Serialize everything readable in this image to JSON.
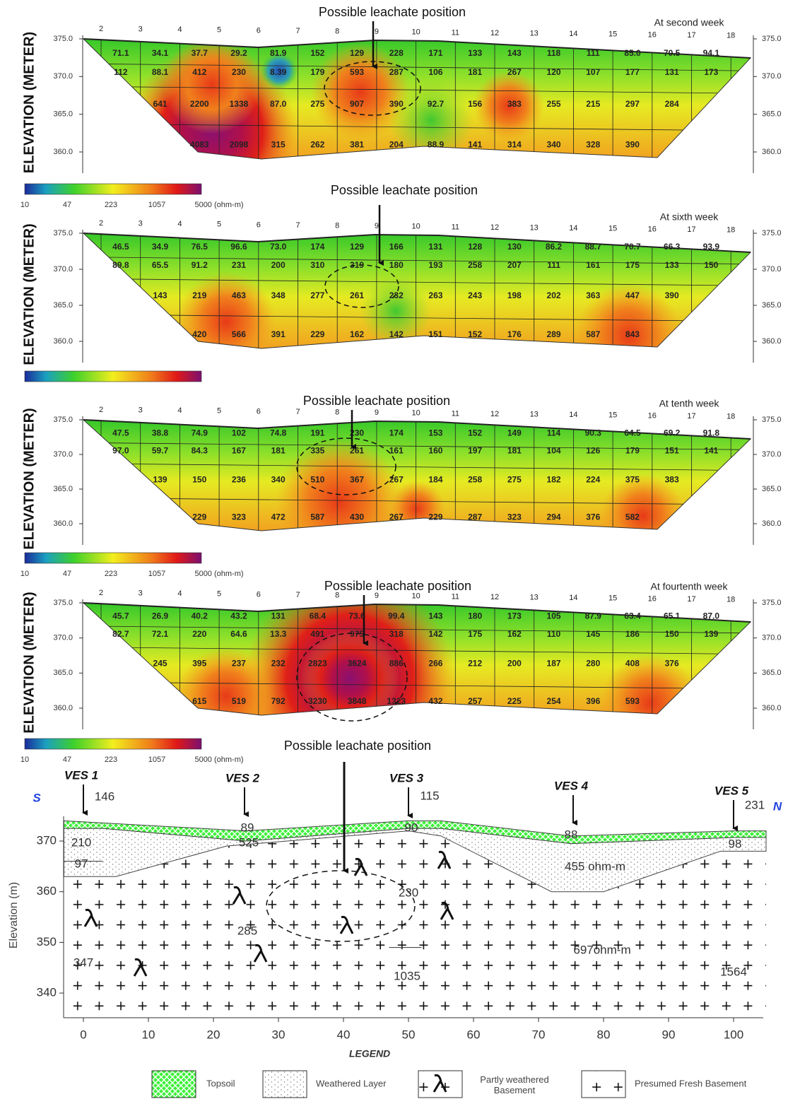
{
  "panels": [
    {
      "title": "Possible leachate position",
      "week": "At second week",
      "y_axis_label": "ELEVATION (METER)",
      "y_ticks": [
        "375.0",
        "370.0",
        "365.0",
        "360.0"
      ],
      "electrodes": [
        2,
        3,
        4,
        5,
        6,
        7,
        8,
        9,
        10,
        11,
        12,
        13,
        14,
        15,
        16,
        17,
        18
      ],
      "rows": [
        [
          "71.1",
          "34.1",
          "37.7",
          "29.2",
          "81.9",
          "152",
          "129",
          "228",
          "171",
          "133",
          "143",
          "118",
          "111",
          "85.0",
          "70.5",
          "94.1"
        ],
        [
          "112",
          "88.1",
          "412",
          "230",
          "8.39",
          "179",
          "593",
          "287",
          "106",
          "181",
          "267",
          "120",
          "107",
          "177",
          "131",
          "173"
        ],
        [
          "641",
          "2200",
          "1338",
          "87.0",
          "275",
          "907",
          "390",
          "92.7",
          "156",
          "383",
          "255",
          "215",
          "297",
          "284"
        ],
        [
          "4083",
          "2098",
          "315",
          "262",
          "381",
          "204",
          "88.9",
          "141",
          "314",
          "340",
          "328",
          "390"
        ]
      ],
      "colorbar": [
        "10",
        "47",
        "223",
        "1057",
        "5000 (ohm-m)"
      ]
    },
    {
      "title": "Possible leachate position",
      "week": "At sixth week",
      "y_axis_label": "ELEVATION (METER)",
      "y_ticks": [
        "375.0",
        "370.0",
        "365.0",
        "360.0"
      ],
      "electrodes": [
        2,
        3,
        4,
        5,
        6,
        7,
        8,
        9,
        10,
        11,
        12,
        13,
        14,
        15,
        16,
        17,
        18
      ],
      "rows": [
        [
          "46.5",
          "34.9",
          "76.5",
          "96.6",
          "73.0",
          "174",
          "129",
          "166",
          "131",
          "128",
          "130",
          "86.2",
          "88.7",
          "70.7",
          "66.3",
          "93.9"
        ],
        [
          "89.8",
          "65.5",
          "91.2",
          "231",
          "200",
          "310",
          "319",
          "180",
          "193",
          "258",
          "207",
          "111",
          "161",
          "175",
          "133",
          "150"
        ],
        [
          "143",
          "219",
          "463",
          "348",
          "277",
          "261",
          "232",
          "263",
          "243",
          "198",
          "202",
          "363",
          "447",
          "390"
        ],
        [
          "420",
          "566",
          "391",
          "229",
          "162",
          "142",
          "151",
          "152",
          "176",
          "289",
          "587",
          "843"
        ]
      ]
    },
    {
      "title": "Possible leachate position",
      "week": "At tenth  week",
      "y_axis_label": "ELEVATION (METER)",
      "y_ticks": [
        "375.0",
        "370.0",
        "365.0",
        "360.0"
      ],
      "electrodes": [
        2,
        3,
        4,
        5,
        6,
        7,
        8,
        9,
        10,
        11,
        12,
        13,
        14,
        15,
        16,
        17,
        18
      ],
      "rows": [
        [
          "47.5",
          "38.8",
          "74.9",
          "102",
          "74.8",
          "191",
          "230",
          "174",
          "153",
          "152",
          "149",
          "114",
          "90.3",
          "64.5",
          "69.2",
          "91.8"
        ],
        [
          "97.0",
          "59.7",
          "84.3",
          "167",
          "181",
          "335",
          "261",
          "161",
          "160",
          "197",
          "181",
          "104",
          "126",
          "179",
          "151",
          "141"
        ],
        [
          "139",
          "150",
          "236",
          "340",
          "510",
          "367",
          "267",
          "184",
          "258",
          "275",
          "182",
          "224",
          "375",
          "383"
        ],
        [
          "229",
          "323",
          "472",
          "587",
          "430",
          "267",
          "229",
          "287",
          "323",
          "294",
          "376",
          "582"
        ]
      ],
      "colorbar": [
        "10",
        "47",
        "223",
        "1057",
        "5000 (ohm-m)"
      ]
    },
    {
      "title": "Possible leachate position",
      "week": "At fourtenth week",
      "y_axis_label": "ELEVATION (METER)",
      "y_ticks": [
        "375.0",
        "370.0",
        "365.0",
        "360.0"
      ],
      "electrodes": [
        2,
        3,
        4,
        5,
        6,
        7,
        8,
        9,
        10,
        11,
        12,
        13,
        14,
        15,
        16,
        17,
        18
      ],
      "rows": [
        [
          "45.7",
          "26.9",
          "40.2",
          "43.2",
          "131",
          "68.4",
          "73.6",
          "99.4",
          "143",
          "180",
          "173",
          "105",
          "87.9",
          "63.4",
          "65.1",
          "87.0"
        ],
        [
          "82.7",
          "72.1",
          "220",
          "64.6",
          "13.3",
          "491",
          "975",
          "318",
          "142",
          "175",
          "162",
          "110",
          "145",
          "186",
          "150",
          "139"
        ],
        [
          "245",
          "395",
          "237",
          "232",
          "2823",
          "3624",
          "886",
          "266",
          "212",
          "200",
          "187",
          "280",
          "408",
          "376"
        ],
        [
          "615",
          "519",
          "792",
          "3230",
          "3848",
          "1323",
          "432",
          "257",
          "225",
          "254",
          "396",
          "593"
        ]
      ],
      "colorbar": [
        "10",
        "47",
        "223",
        "1057",
        "5000 (ohm-m)"
      ]
    }
  ],
  "section": {
    "title": "Possible leachate position",
    "ves": [
      "VES 1",
      "VES 2",
      "VES 3",
      "VES 4",
      "VES 5"
    ],
    "south": "S",
    "north": "N",
    "y_axis_label": "Elevation (m)",
    "x_ticks": [
      0,
      10,
      20,
      30,
      40,
      50,
      60,
      70,
      80,
      90,
      100
    ],
    "y_ticks": [
      370,
      360,
      350,
      340
    ],
    "annotations": [
      "146",
      "89",
      "525",
      "115",
      "90",
      "88",
      "231",
      "98",
      "210",
      "97",
      "455 ohm-m",
      "230",
      "285",
      "347",
      "1035",
      "697ohm-m",
      "1564"
    ]
  },
  "legend": {
    "title": "LEGEND",
    "items": [
      "Topsoil",
      "Weathered Layer",
      "Partly weathered Basement",
      "Presumed Fresh Basement"
    ]
  }
}
